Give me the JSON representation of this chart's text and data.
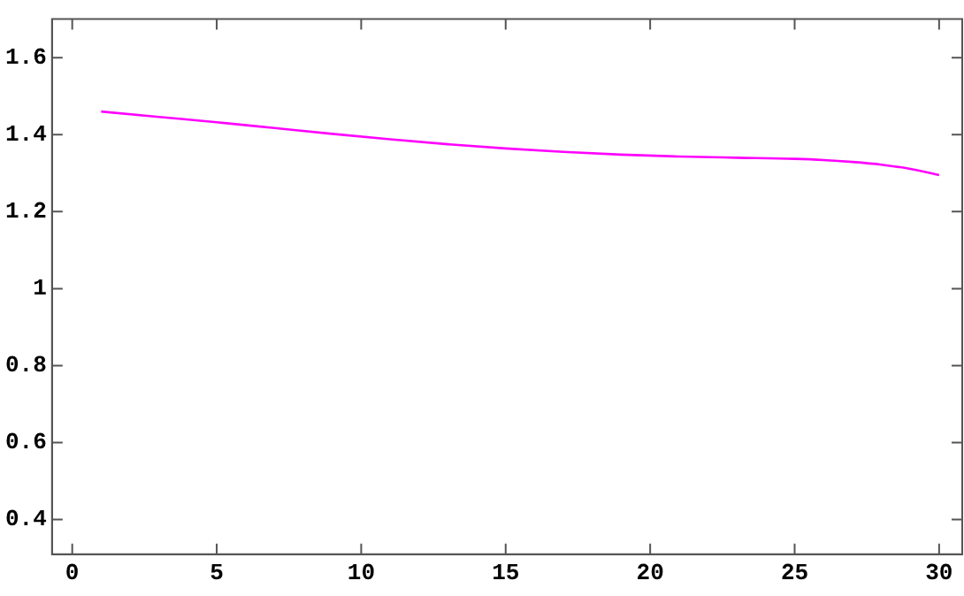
{
  "chart_data": {
    "type": "line",
    "x": [
      1,
      3,
      5,
      7,
      9,
      11,
      13,
      15,
      17,
      19,
      21,
      23,
      25,
      26,
      27,
      28,
      29,
      30
    ],
    "series": [
      {
        "color": "#ff00ff",
        "values": [
          1.46,
          1.446,
          1.432,
          1.417,
          1.402,
          1.388,
          1.375,
          1.364,
          1.355,
          1.348,
          1.343,
          1.34,
          1.337,
          1.334,
          1.329,
          1.322,
          1.311,
          1.295
        ]
      }
    ],
    "xlim": [
      -0.7,
      30.8
    ],
    "ylim": [
      0.31,
      1.7
    ],
    "xticks": [
      0,
      5,
      10,
      15,
      20,
      25,
      30
    ],
    "yticks": [
      0.4,
      0.6,
      0.8,
      1,
      1.2,
      1.4,
      1.6
    ],
    "grid": false,
    "legend": false,
    "marker": "none",
    "line_style": "solid"
  }
}
